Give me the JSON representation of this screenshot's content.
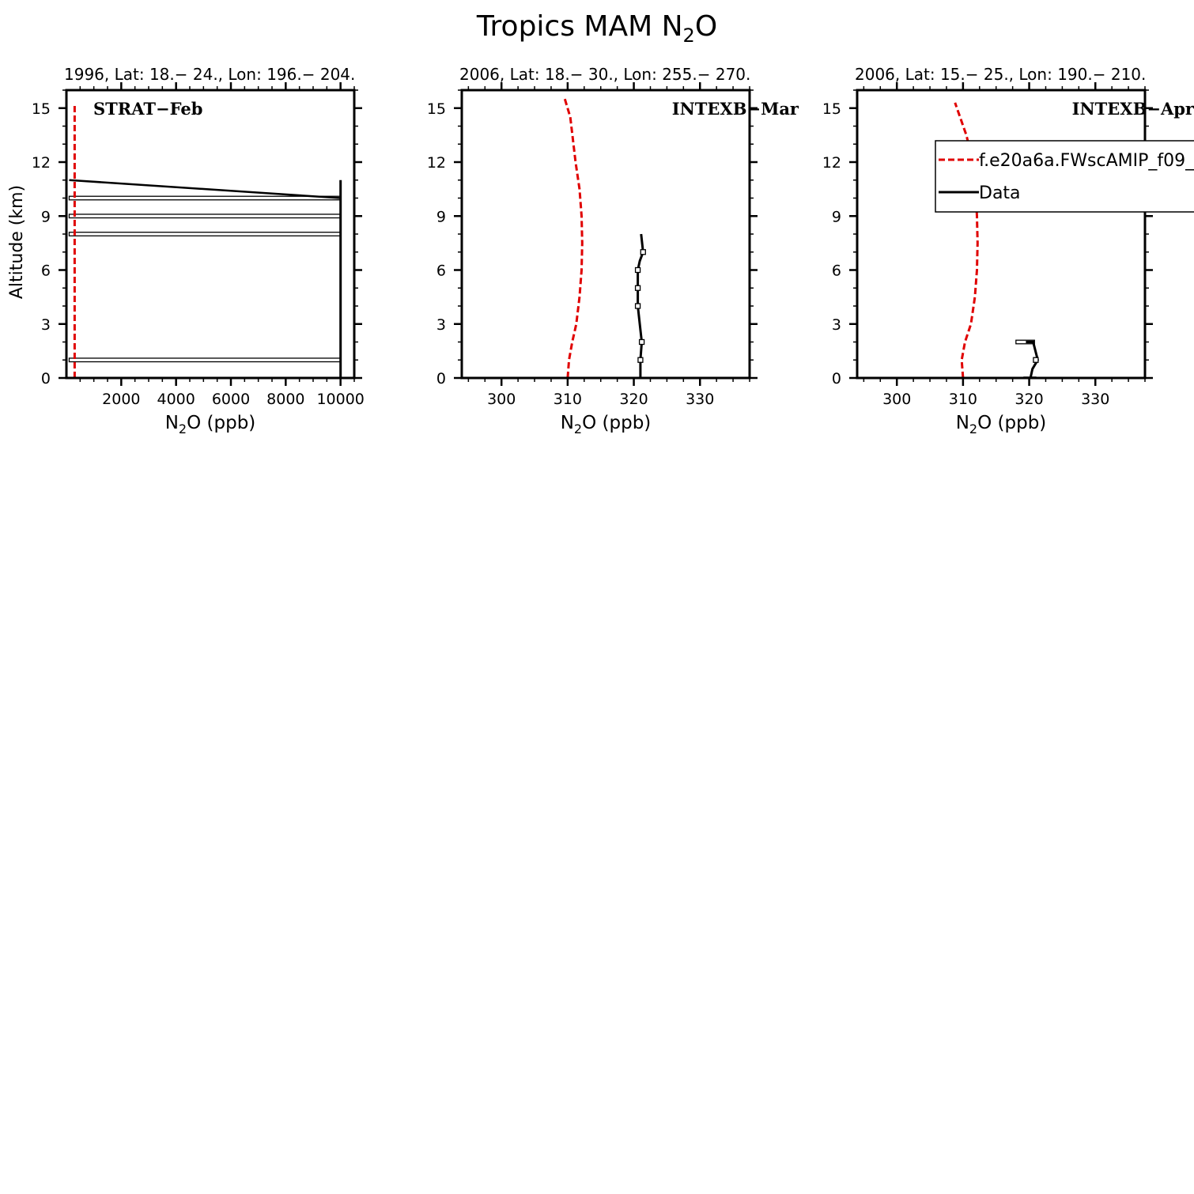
{
  "figure": {
    "title_main": "Tropics MAM N",
    "title_sub": "2",
    "title_tail": "O"
  },
  "chart_data": [
    {
      "type": "line",
      "header": "1996, Lat: 18.− 24., Lon: 196.− 204.",
      "campaign_label": "STRAT−Feb",
      "xlabel_main": "N",
      "xlabel_sub": "2",
      "xlabel_tail": "O (ppb)",
      "ylabel": "Altitude (km)",
      "xlim": [
        0,
        10500
      ],
      "ylim": [
        0,
        16
      ],
      "xticks": [
        2000,
        4000,
        6000,
        8000,
        10000
      ],
      "xtick_labels": [
        "2000",
        "4000",
        "6000",
        "8000",
        "10000"
      ],
      "yticks": [
        0,
        3,
        6,
        9,
        12,
        15
      ],
      "ytick_labels": [
        "0",
        "3",
        "6",
        "9",
        "12",
        "15"
      ],
      "series": [
        {
          "color": "#e00000",
          "dash": true,
          "x": [
            300,
            300,
            300,
            300,
            300,
            300
          ],
          "y": [
            0,
            3,
            6,
            9,
            12,
            15.2
          ]
        },
        {
          "color": "#000000",
          "dash": false,
          "x": [
            10000,
            10000,
            10000
          ],
          "y": [
            0,
            10,
            11
          ]
        }
      ],
      "range_boxes": [
        {
          "x0": 100,
          "x1": 10000,
          "y0": 10.1,
          "y1": 9.9
        },
        {
          "x0": 100,
          "x1": 10000,
          "y0": 9.1,
          "y1": 8.9
        },
        {
          "x0": 100,
          "x1": 10000,
          "y0": 8.1,
          "y1": 7.9
        },
        {
          "x0": 100,
          "x1": 10000,
          "y0": 1.1,
          "y1": 0.9
        }
      ],
      "segments": [
        {
          "x0": 100,
          "y0": 11,
          "x1": 10000,
          "y1": 10
        }
      ]
    },
    {
      "type": "line",
      "header": "2006, Lat: 18.− 30., Lon: 255.− 270.",
      "campaign_label": "INTEXB−Mar",
      "xlabel_main": "N",
      "xlabel_sub": "2",
      "xlabel_tail": "O (ppb)",
      "ylabel": "",
      "xlim": [
        294,
        337.5
      ],
      "ylim": [
        0,
        16
      ],
      "xticks": [
        300,
        310,
        320,
        330
      ],
      "xtick_labels": [
        "300",
        "310",
        "320",
        "330"
      ],
      "yticks": [
        0,
        3,
        6,
        9,
        12,
        15
      ],
      "ytick_labels": [
        "0",
        "3",
        "6",
        "9",
        "12",
        "15"
      ],
      "series": [
        {
          "color": "#e00000",
          "dash": true,
          "x": [
            310.0,
            310.2,
            310.7,
            311.3,
            311.8,
            312.1,
            312.2,
            312.1,
            311.8,
            311.2,
            310.4,
            309.5
          ],
          "y": [
            0,
            1,
            2,
            3,
            4.5,
            6,
            7.5,
            9,
            10.5,
            12,
            14.5,
            15.6
          ]
        },
        {
          "color": "#000000",
          "dash": false,
          "x": [
            321.0,
            321.0,
            321.2,
            320.9,
            320.6,
            320.6,
            320.6,
            320.9,
            321.4,
            321.1
          ],
          "y": [
            0,
            1,
            2,
            3,
            4,
            5,
            6,
            6.5,
            7,
            8
          ]
        }
      ],
      "markers": [
        {
          "x": 321.0,
          "y": 1
        },
        {
          "x": 321.2,
          "y": 2
        },
        {
          "x": 320.6,
          "y": 4
        },
        {
          "x": 320.6,
          "y": 5
        },
        {
          "x": 320.6,
          "y": 6
        },
        {
          "x": 321.4,
          "y": 7
        }
      ]
    },
    {
      "type": "line",
      "header": "2006, Lat: 15.− 25., Lon: 190.− 210.",
      "campaign_label": "INTEXB−Apr",
      "xlabel_main": "N",
      "xlabel_sub": "2",
      "xlabel_tail": "O (ppb)",
      "ylabel": "",
      "xlim": [
        294,
        337.5
      ],
      "ylim": [
        0,
        16
      ],
      "xticks": [
        300,
        310,
        320,
        330
      ],
      "xtick_labels": [
        "300",
        "310",
        "320",
        "330"
      ],
      "yticks": [
        0,
        3,
        6,
        9,
        12,
        15
      ],
      "ytick_labels": [
        "0",
        "3",
        "6",
        "9",
        "12",
        "15"
      ],
      "series": [
        {
          "name": "f.e20a6a.FWscAMIP_f09_",
          "color": "#e00000",
          "dash": true,
          "x": [
            310.0,
            309.8,
            310.3,
            311.2,
            311.8,
            312.1,
            312.2,
            312.1,
            311.9,
            311.5,
            310.5,
            308.8
          ],
          "y": [
            0,
            1,
            2,
            3,
            4.5,
            6,
            7.5,
            9,
            10.5,
            12,
            13.5,
            15.3
          ]
        },
        {
          "name": "Data",
          "color": "#000000",
          "dash": false,
          "x": [
            320.2,
            320.5,
            321.3,
            320.6,
            319.5
          ],
          "y": [
            0,
            0.5,
            1,
            2,
            2
          ]
        }
      ],
      "range_boxes": [
        {
          "x0": 318.0,
          "x1": 320.8,
          "y0": 2.1,
          "y1": 1.9
        },
        {
          "x0": 319.2,
          "x1": 321.0,
          "y0": 0.05,
          "y1": -0.05
        }
      ],
      "markers": [
        {
          "x": 321.0,
          "y": 1
        }
      ],
      "legend": {
        "position": "top-right",
        "entries": [
          "f.e20a6a.FWscAMIP_f09_",
          "Data"
        ]
      }
    }
  ]
}
